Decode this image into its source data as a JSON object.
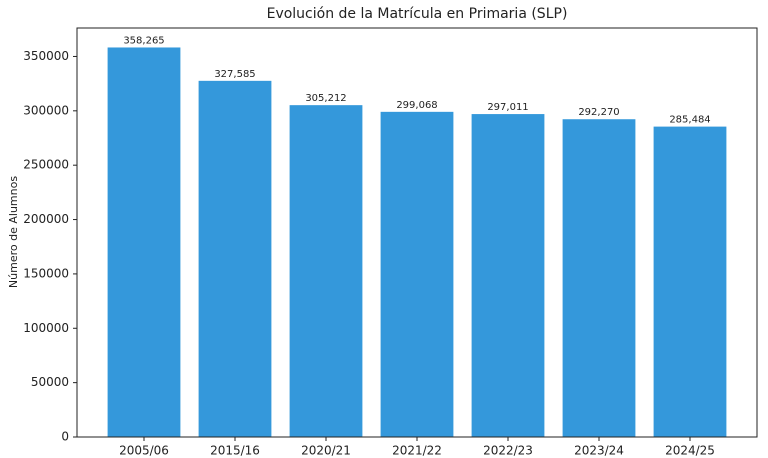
{
  "chart_data": {
    "type": "bar",
    "title": "Evolución de la Matrícula en Primaria (SLP)",
    "y_label": "Número de Alumnos",
    "categories": [
      "2005/06",
      "2015/16",
      "2020/21",
      "2021/22",
      "2022/23",
      "2023/24",
      "2024/25"
    ],
    "values": [
      358265,
      327585,
      305212,
      299068,
      297011,
      292270,
      285484
    ],
    "value_labels": [
      "358,265",
      "327,585",
      "305,212",
      "299,068",
      "297,011",
      "292,270",
      "285,484"
    ],
    "color": "#3498db",
    "ylim": [
      0,
      376178
    ],
    "yticks": [
      0,
      50000,
      100000,
      150000,
      200000,
      250000,
      300000,
      350000
    ],
    "grid": false
  }
}
